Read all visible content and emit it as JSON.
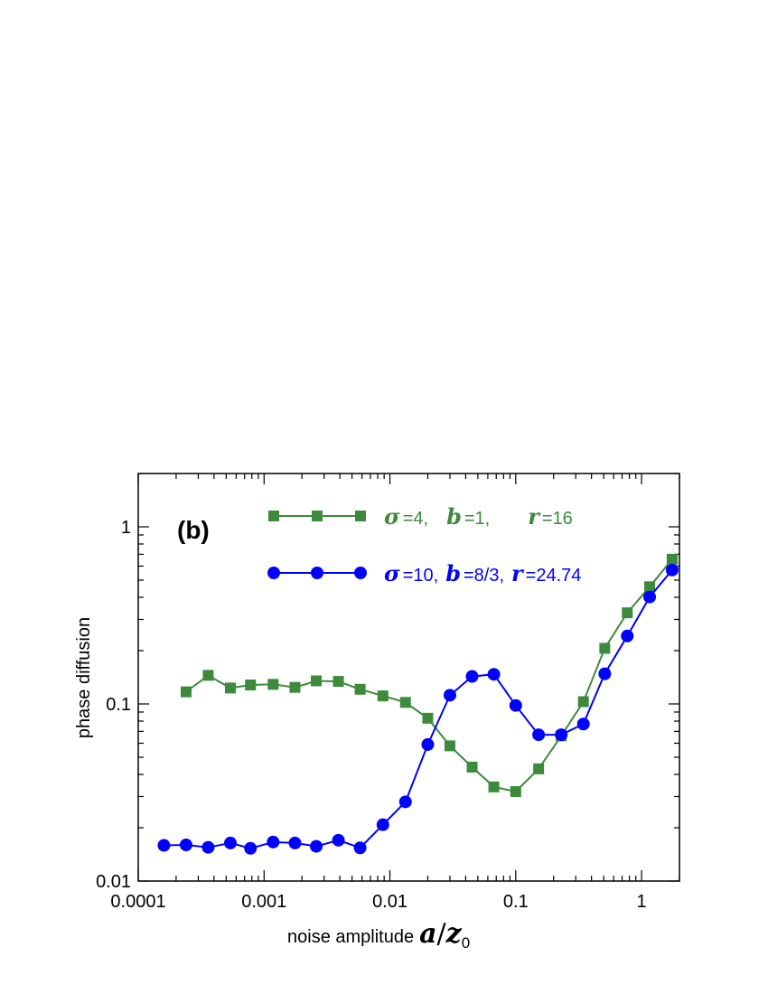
{
  "chart_data": {
    "type": "line",
    "panel_label": "(b)",
    "x_scale": "log",
    "y_scale": "log",
    "xlim": [
      0.0001,
      2
    ],
    "ylim": [
      0.01,
      2
    ],
    "xlabel": {
      "prefix": "noise amplitude",
      "math_a": "a",
      "math_slash": "/",
      "math_z": "z",
      "math_sub": "0"
    },
    "ylabel": "phase diffusion",
    "x_ticks": [
      {
        "value": 0.0001,
        "label": "0.0001"
      },
      {
        "value": 0.001,
        "label": "0.001"
      },
      {
        "value": 0.01,
        "label": "0.01"
      },
      {
        "value": 0.1,
        "label": "0.1"
      },
      {
        "value": 1,
        "label": "1"
      }
    ],
    "y_ticks": [
      {
        "value": 0.01,
        "label": "0.01"
      },
      {
        "value": 0.1,
        "label": "0.1"
      },
      {
        "value": 1,
        "label": "1"
      }
    ],
    "series": [
      {
        "name": "σ=4, b=1, r=16",
        "color": "#3d8a3d",
        "marker": "square",
        "legend": {
          "sigma_sym": "σ",
          "sigma_val": "=4,",
          "b_sym": "b",
          "b_val": "=1,",
          "r_sym": "r",
          "r_val": "=16"
        },
        "x": [
          0.00024,
          0.00036,
          0.00054,
          0.00078,
          0.00118,
          0.00176,
          0.0026,
          0.0039,
          0.0058,
          0.0088,
          0.0133,
          0.02,
          0.03,
          0.045,
          0.067,
          0.1,
          0.152,
          0.23,
          0.345,
          0.51,
          0.77,
          1.16,
          1.75
        ],
        "y": [
          0.117,
          0.145,
          0.123,
          0.128,
          0.129,
          0.124,
          0.135,
          0.134,
          0.121,
          0.111,
          0.102,
          0.083,
          0.058,
          0.044,
          0.034,
          0.032,
          0.043,
          0.066,
          0.103,
          0.206,
          0.327,
          0.459,
          0.656
        ]
      },
      {
        "name": "σ=10, b=8/3, r=24.74",
        "color": "#0000ff",
        "marker": "circle",
        "legend": {
          "sigma_sym": "σ",
          "sigma_val": "=10,",
          "b_sym": "b",
          "b_val": "=8/3,",
          "r_sym": "r",
          "r_val": "=24.74"
        },
        "x": [
          0.00016,
          0.00024,
          0.00036,
          0.00054,
          0.00078,
          0.00118,
          0.00176,
          0.0026,
          0.0039,
          0.0058,
          0.0088,
          0.0133,
          0.02,
          0.03,
          0.045,
          0.067,
          0.1,
          0.152,
          0.23,
          0.345,
          0.51,
          0.77,
          1.16,
          1.75
        ],
        "y": [
          0.0159,
          0.016,
          0.0155,
          0.0164,
          0.0153,
          0.0166,
          0.0164,
          0.0157,
          0.017,
          0.0154,
          0.0208,
          0.028,
          0.059,
          0.112,
          0.143,
          0.147,
          0.098,
          0.067,
          0.067,
          0.077,
          0.148,
          0.242,
          0.402,
          0.57
        ]
      }
    ]
  }
}
